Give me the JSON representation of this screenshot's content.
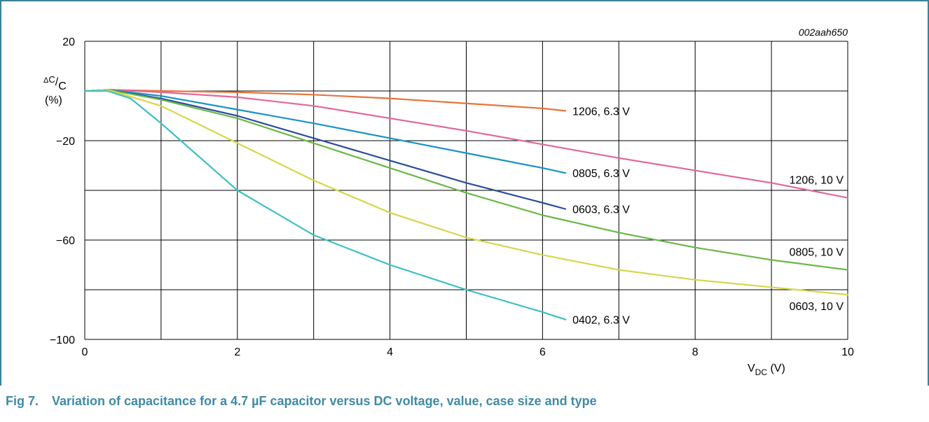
{
  "figure": {
    "id_label": "002aah650",
    "caption_number": "Fig 7.",
    "caption_text": "Variation of capacitance for a 4.7 µF capacitor versus DC voltage, value, case size and type"
  },
  "chart_data": {
    "type": "line",
    "title": "",
    "xlabel": "VDC (V)",
    "xlabel_main": "V",
    "xlabel_sub": "DC",
    "xlabel_unit": " (V)",
    "ylabel_top": "ΔC/C",
    "ylabel_delta": "Δ",
    "ylabel_C": "C",
    "ylabel_sep": "/",
    "ylabel_sub": "C",
    "ylabel_bottom": "(%)",
    "xlim": [
      0,
      10
    ],
    "ylim": [
      -100,
      20
    ],
    "x_ticks": [
      0,
      2,
      4,
      6,
      8,
      10
    ],
    "y_ticks": [
      20,
      -20,
      -60,
      -100
    ],
    "y_tick_labels": [
      "20",
      "−20",
      "−60",
      "−100"
    ],
    "grid": true,
    "series": [
      {
        "name": "1206, 6.3 V",
        "color": "#e8733a",
        "x": [
          0,
          0.3,
          1,
          2,
          3,
          4,
          5,
          6,
          6.3
        ],
        "y": [
          0,
          0.5,
          0,
          -0.5,
          -1.5,
          -3,
          -5,
          -7,
          -8
        ]
      },
      {
        "name": "1206, 10 V",
        "color": "#e2679a",
        "x": [
          0,
          0.3,
          1,
          2,
          3,
          4,
          5,
          6,
          7,
          8,
          9,
          10
        ],
        "y": [
          0,
          0.5,
          -0.5,
          -2.5,
          -6,
          -11,
          -16,
          -21.5,
          -27,
          -32,
          -37,
          -43
        ]
      },
      {
        "name": "0805, 6.3 V",
        "color": "#1a91c8",
        "x": [
          0,
          0.3,
          1,
          2,
          3,
          4,
          5,
          6,
          6.3
        ],
        "y": [
          0,
          0.5,
          -2,
          -7.5,
          -13,
          -19,
          -25,
          -31,
          -33
        ]
      },
      {
        "name": "0603, 6.3 V",
        "color": "#2c4c9e",
        "x": [
          0,
          0.3,
          1,
          2,
          3,
          4,
          5,
          6,
          6.3
        ],
        "y": [
          0,
          0.5,
          -3,
          -10,
          -19,
          -28,
          -37,
          -45,
          -47.5
        ]
      },
      {
        "name": "0805, 10 V",
        "color": "#6ab846",
        "x": [
          0,
          0.3,
          1,
          2,
          3,
          4,
          5,
          6,
          7,
          8,
          9,
          10
        ],
        "y": [
          0,
          0.5,
          -3.5,
          -11,
          -21,
          -31,
          -41,
          -50,
          -57,
          -63,
          -68,
          -72
        ]
      },
      {
        "name": "0603, 10 V",
        "color": "#d6d64b",
        "x": [
          0,
          0.3,
          1,
          2,
          3,
          4,
          5,
          6,
          7,
          8,
          9,
          10
        ],
        "y": [
          0,
          0.5,
          -6,
          -21,
          -36,
          -49,
          -59,
          -66,
          -72,
          -76,
          -79,
          -82
        ]
      },
      {
        "name": "0402, 6.3 V",
        "color": "#3cbfc4",
        "x": [
          0,
          0.3,
          0.6,
          1,
          2,
          3,
          4,
          5,
          6,
          6.3
        ],
        "y": [
          0,
          0,
          -3,
          -13,
          -40,
          -58,
          -70,
          -80,
          -89,
          -92
        ]
      }
    ]
  }
}
